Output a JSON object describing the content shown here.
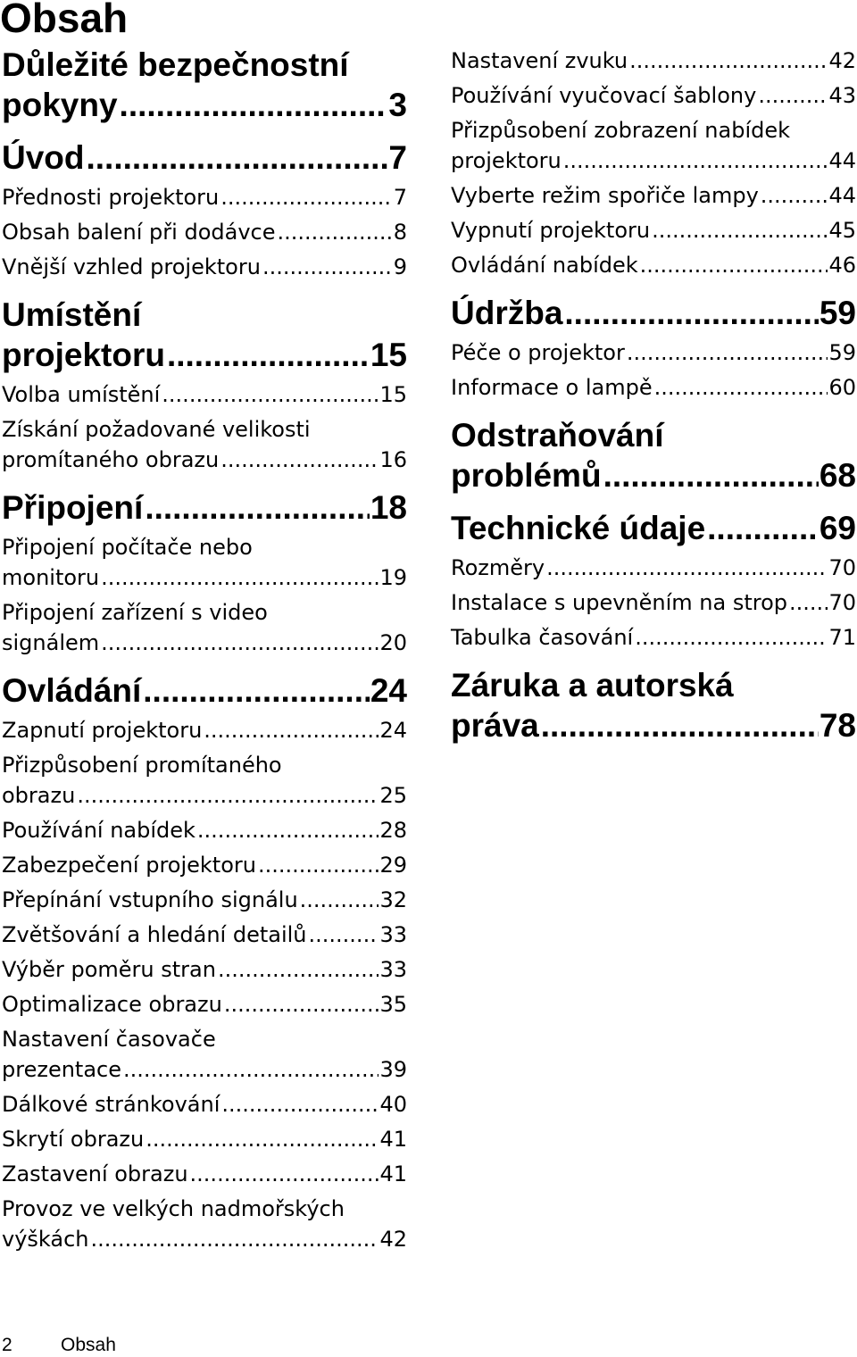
{
  "title": "Obsah",
  "left": [
    {
      "kind": "sec",
      "lines": [
        "Důležité bezpečnostní",
        "pokyny"
      ],
      "page": "3"
    },
    {
      "kind": "sec",
      "lines": [
        "Úvod"
      ],
      "page": "7"
    },
    {
      "kind": "sub",
      "lines": [
        "Přednosti projektoru"
      ],
      "page": "7"
    },
    {
      "kind": "sub",
      "lines": [
        "Obsah balení při dodávce"
      ],
      "page": "8"
    },
    {
      "kind": "sub",
      "lines": [
        "Vnější vzhled projektoru"
      ],
      "page": "9"
    },
    {
      "kind": "sec",
      "lines": [
        "Umístění",
        "projektoru"
      ],
      "page": "15"
    },
    {
      "kind": "sub",
      "lines": [
        "Volba umístění"
      ],
      "page": "15"
    },
    {
      "kind": "sub",
      "lines": [
        "Získání požadované velikosti",
        "promítaného obrazu"
      ],
      "page": "16"
    },
    {
      "kind": "sec",
      "lines": [
        "Připojení"
      ],
      "page": "18"
    },
    {
      "kind": "sub",
      "lines": [
        "Připojení počítače nebo",
        "monitoru"
      ],
      "page": "19"
    },
    {
      "kind": "sub",
      "lines": [
        "Připojení zařízení s video",
        "signálem"
      ],
      "page": "20"
    },
    {
      "kind": "sec",
      "lines": [
        "Ovládání"
      ],
      "page": "24"
    },
    {
      "kind": "sub",
      "lines": [
        "Zapnutí projektoru"
      ],
      "page": "24"
    },
    {
      "kind": "sub",
      "lines": [
        "Přizpůsobení promítaného",
        "obrazu"
      ],
      "page": "25"
    },
    {
      "kind": "sub",
      "lines": [
        "Používání nabídek"
      ],
      "page": "28"
    },
    {
      "kind": "sub",
      "lines": [
        "Zabezpečení projektoru"
      ],
      "page": "29"
    },
    {
      "kind": "sub",
      "lines": [
        "Přepínání vstupního signálu"
      ],
      "page": "32"
    },
    {
      "kind": "sub",
      "lines": [
        "Zvětšování a hledání detailů"
      ],
      "page": "33"
    },
    {
      "kind": "sub",
      "lines": [
        "Výběr poměru stran"
      ],
      "page": "33"
    },
    {
      "kind": "sub",
      "lines": [
        "Optimalizace obrazu"
      ],
      "page": "35"
    },
    {
      "kind": "sub",
      "lines": [
        "Nastavení časovače",
        "prezentace"
      ],
      "page": "39"
    },
    {
      "kind": "sub",
      "lines": [
        "Dálkové stránkování"
      ],
      "page": "40"
    },
    {
      "kind": "sub",
      "lines": [
        "Skrytí obrazu"
      ],
      "page": "41"
    },
    {
      "kind": "sub",
      "lines": [
        "Zastavení obrazu"
      ],
      "page": "41"
    },
    {
      "kind": "sub",
      "lines": [
        "Provoz ve velkých nadmořských",
        "výškách"
      ],
      "page": "42"
    }
  ],
  "right": [
    {
      "kind": "sub",
      "lines": [
        "Nastavení zvuku"
      ],
      "page": "42"
    },
    {
      "kind": "sub",
      "lines": [
        "Používání vyučovací šablony"
      ],
      "page": "43"
    },
    {
      "kind": "sub",
      "lines": [
        "Přizpůsobení zobrazení nabídek",
        "projektoru"
      ],
      "page": "44"
    },
    {
      "kind": "sub",
      "lines": [
        "Vyberte režim spořiče lampy"
      ],
      "page": "44"
    },
    {
      "kind": "sub",
      "lines": [
        "Vypnutí projektoru"
      ],
      "page": "45"
    },
    {
      "kind": "sub",
      "lines": [
        "Ovládání nabídek"
      ],
      "page": "46"
    },
    {
      "kind": "sec",
      "lines": [
        "Údržba"
      ],
      "page": "59"
    },
    {
      "kind": "sub",
      "lines": [
        "Péče o projektor"
      ],
      "page": "59"
    },
    {
      "kind": "sub",
      "lines": [
        "Informace o lampě"
      ],
      "page": "60"
    },
    {
      "kind": "sec",
      "lines": [
        "Odstraňování",
        "problémů"
      ],
      "page": "68"
    },
    {
      "kind": "sec",
      "lines": [
        "Technické údaje"
      ],
      "page": "69"
    },
    {
      "kind": "sub",
      "lines": [
        "Rozměry"
      ],
      "page": "70"
    },
    {
      "kind": "sub",
      "lines": [
        "Instalace s upevněním na strop"
      ],
      "page": "70"
    },
    {
      "kind": "sub",
      "lines": [
        "Tabulka časování"
      ],
      "page": "71"
    },
    {
      "kind": "sec",
      "lines": [
        "Záruka a autorská",
        "práva"
      ],
      "page": "78"
    }
  ],
  "footer": {
    "page_number": "2",
    "section": "Obsah"
  }
}
